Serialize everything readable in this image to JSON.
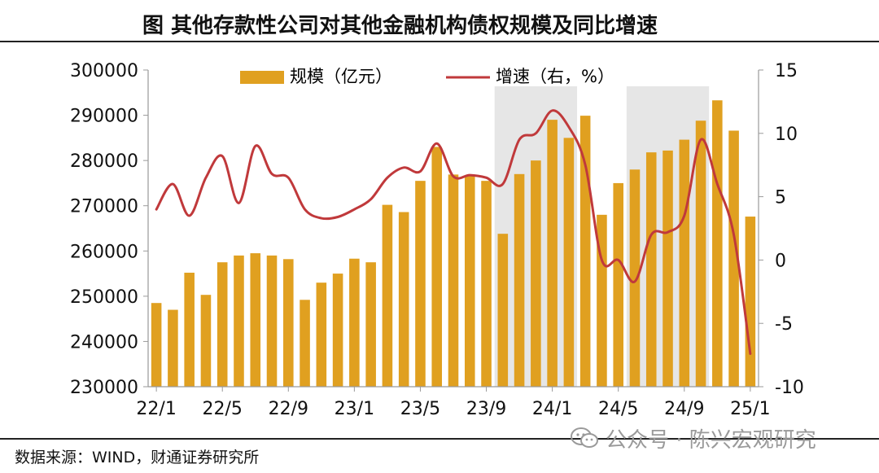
{
  "title": "图  其他存款性公司对其他金融机构债权规模及同比增速",
  "source": "数据来源：WIND，财通证券研究所",
  "watermark": "公众号 · 陈兴宏观研究",
  "chart_data": {
    "type": "bar+line",
    "legend": [
      "规模（亿元）",
      "增速（右，%）"
    ],
    "legend_position": "top",
    "colors": {
      "bar": "#E0A020",
      "line": "#C0393B",
      "shade": "#E6E6E6"
    },
    "x_ticks": [
      "22/1",
      "22/5",
      "22/9",
      "23/1",
      "23/5",
      "23/9",
      "24/1",
      "24/5",
      "24/9",
      "25/1"
    ],
    "categories": [
      "22/1",
      "22/2",
      "22/3",
      "22/4",
      "22/5",
      "22/6",
      "22/7",
      "22/8",
      "22/9",
      "22/10",
      "22/11",
      "22/12",
      "23/1",
      "23/2",
      "23/3",
      "23/4",
      "23/5",
      "23/6",
      "23/7",
      "23/8",
      "23/9",
      "23/10",
      "23/11",
      "23/12",
      "24/1",
      "24/2",
      "24/3",
      "24/4",
      "24/5",
      "24/6",
      "24/7",
      "24/8",
      "24/9",
      "24/10",
      "24/11",
      "24/12",
      "25/1"
    ],
    "shaded_ranges": [
      [
        "23/10",
        "24/2"
      ],
      [
        "24/6",
        "24/10"
      ]
    ],
    "y_left": {
      "min": 230000,
      "max": 300000,
      "ticks": [
        230000,
        240000,
        250000,
        260000,
        270000,
        280000,
        290000,
        300000
      ]
    },
    "y_right": {
      "min": -10,
      "max": 15,
      "ticks": [
        -10,
        -5,
        0,
        5,
        10,
        15
      ]
    },
    "series": [
      {
        "name": "规模（亿元）",
        "axis": "left",
        "type": "bar",
        "values": [
          248500,
          247000,
          255200,
          250300,
          257500,
          259000,
          259500,
          259000,
          258200,
          249200,
          253000,
          255000,
          258300,
          257500,
          270200,
          268600,
          275500,
          283000,
          276900,
          276800,
          275500,
          263800,
          277000,
          280000,
          289000,
          285000,
          289900,
          268000,
          275000,
          278000,
          281800,
          282200,
          284600,
          288800,
          293300,
          286600,
          267600
        ]
      },
      {
        "name": "增速（右，%）",
        "axis": "right",
        "type": "line",
        "values": [
          4.0,
          6.0,
          3.5,
          6.5,
          8.2,
          4.5,
          9.0,
          6.8,
          6.5,
          4.0,
          3.3,
          3.4,
          4.0,
          4.8,
          6.5,
          7.3,
          7.0,
          9.2,
          6.6,
          6.7,
          6.5,
          6.0,
          9.5,
          10.0,
          11.8,
          10.5,
          7.5,
          0.0,
          0.0,
          -1.7,
          2.0,
          2.2,
          3.5,
          9.5,
          6.0,
          2.0,
          -7.4
        ]
      }
    ]
  }
}
